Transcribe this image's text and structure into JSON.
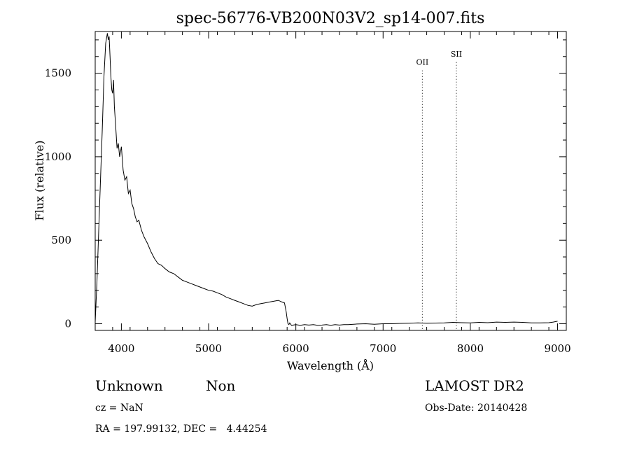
{
  "chart_data": {
    "type": "line",
    "title": "spec-56776-VB200N03V2_sp14-007.fits",
    "xlabel": "Wavelength (Å)",
    "ylabel": "Flux (relative)",
    "xlim": [
      3700,
      9100
    ],
    "ylim": [
      -40,
      1750
    ],
    "x_ticks": [
      4000,
      5000,
      6000,
      7000,
      8000,
      9000
    ],
    "y_ticks": [
      0,
      500,
      1000,
      1500
    ],
    "x_tick_labels": [
      "4000",
      "5000",
      "6000",
      "7000",
      "8000",
      "9000"
    ],
    "y_tick_labels": [
      "0",
      "500",
      "1000",
      "1500"
    ],
    "grid": false,
    "series": [
      {
        "x": [
          3700,
          3720,
          3750,
          3780,
          3800,
          3820,
          3840,
          3850,
          3860,
          3870,
          3880,
          3890,
          3900,
          3910,
          3920,
          3935,
          3950,
          3965,
          3980,
          4000,
          4020,
          4040,
          4060,
          4080,
          4100,
          4120,
          4140,
          4160,
          4180,
          4200,
          4230,
          4260,
          4300,
          4340,
          4380,
          4420,
          4460,
          4500,
          4550,
          4600,
          4650,
          4700,
          4750,
          4800,
          4850,
          4900,
          4950,
          5000,
          5050,
          5100,
          5150,
          5200,
          5250,
          5300,
          5350,
          5400,
          5450,
          5500,
          5550,
          5600,
          5650,
          5700,
          5750,
          5800,
          5840,
          5870,
          5890,
          5900,
          5910,
          5920,
          5930,
          5950,
          6000,
          6050,
          6100,
          6150,
          6200,
          6250,
          6300,
          6350,
          6400,
          6450,
          6500,
          6550,
          6600,
          6700,
          6800,
          6900,
          7000,
          7100,
          7200,
          7300,
          7400,
          7500,
          7600,
          7700,
          7800,
          7900,
          8000,
          8100,
          8200,
          8300,
          8400,
          8500,
          8600,
          8700,
          8800,
          8900,
          8950,
          9000
        ],
        "y": [
          10,
          250,
          700,
          1150,
          1480,
          1680,
          1740,
          1700,
          1720,
          1600,
          1480,
          1400,
          1380,
          1460,
          1300,
          1180,
          1050,
          1080,
          1000,
          1060,
          920,
          860,
          880,
          780,
          800,
          720,
          690,
          640,
          610,
          620,
          560,
          520,
          480,
          430,
          390,
          360,
          350,
          330,
          310,
          300,
          280,
          260,
          250,
          240,
          230,
          220,
          210,
          200,
          195,
          185,
          175,
          160,
          150,
          140,
          130,
          120,
          110,
          105,
          115,
          120,
          125,
          130,
          135,
          140,
          130,
          125,
          70,
          30,
          0,
          -5,
          5,
          -10,
          -5,
          -10,
          -5,
          -8,
          -5,
          -10,
          -8,
          -5,
          -10,
          -5,
          -8,
          -5,
          -5,
          -2,
          0,
          -3,
          0,
          0,
          2,
          3,
          5,
          3,
          4,
          5,
          8,
          6,
          5,
          8,
          6,
          10,
          8,
          10,
          8,
          5,
          5,
          6,
          10,
          15
        ]
      }
    ],
    "annotations": [
      {
        "label": "OII",
        "x": 7450,
        "y": 1550
      },
      {
        "label": "SII",
        "x": 7840,
        "y": 1600
      }
    ]
  },
  "info": {
    "class": "Unknown",
    "subclass": "Non",
    "survey": "LAMOST DR2",
    "cz": "cz = NaN",
    "obs_date": "Obs-Date: 20140428",
    "coords": "RA = 197.99132, DEC =   4.44254"
  }
}
